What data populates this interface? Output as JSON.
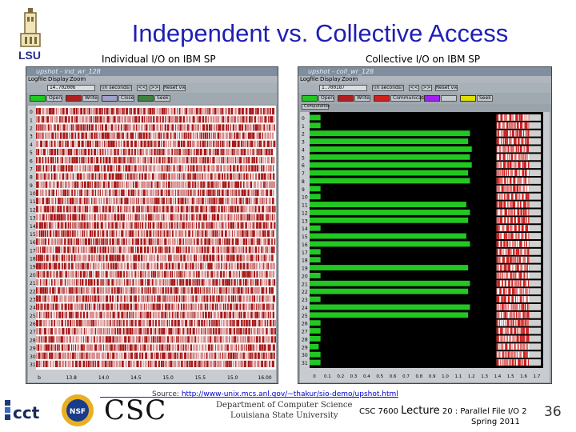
{
  "slide": {
    "title": "Independent vs. Collective Access",
    "left_subtitle": "Individual I/O on IBM SP",
    "right_subtitle": "Collective I/O on IBM SP"
  },
  "colors": {
    "title": "#1e1eb4",
    "open": "#22c822",
    "write": "#b02020",
    "close": "#a0a0c8",
    "seek": "#408040",
    "communication": "#d02020",
    "purple": "#a020f0",
    "yellow": "#e0e000",
    "plot_bg_left": "#f6e8e8",
    "plot_bg_right": "#000000"
  },
  "left_window": {
    "title": "upshot - ind_wr_128",
    "menu": [
      "Logfile",
      "Display",
      "Zoom"
    ],
    "field_value": "14.702006",
    "field_unit": "(in seconds)",
    "btn_prev": "<<",
    "btn_next": ">>",
    "reset_label": "Reset view",
    "legend": [
      {
        "label": "Open",
        "color": "#22c822"
      },
      {
        "label": "Write",
        "color": "#b02020"
      },
      {
        "label": "Close",
        "color": "#a0a0c8"
      },
      {
        "label": "Seek",
        "color": "#408040"
      }
    ],
    "rows": [
      "0",
      "1",
      "2",
      "3",
      "4",
      "5",
      "6",
      "7",
      "8",
      "9",
      "10",
      "11",
      "12",
      "13",
      "14",
      "15",
      "16",
      "17",
      "18",
      "19",
      "20",
      "21",
      "22",
      "23",
      "24",
      "25",
      "26",
      "27",
      "28",
      "29",
      "30",
      "31"
    ],
    "x_ticks": [
      "b",
      "13.8",
      "14.0",
      "14.5",
      "15.0",
      "15.5",
      "15.0",
      "16.00"
    ]
  },
  "right_window": {
    "title": "upshot - coll_wr_128",
    "menu": [
      "Logfile",
      "Display",
      "Zoom"
    ],
    "field_value": "1.700187",
    "field_unit": "(in seconds)",
    "btn_prev": "<<",
    "btn_next": ">>",
    "reset_label": "Reset view",
    "legend": [
      {
        "label": "Open",
        "color": "#22c822"
      },
      {
        "label": "Write",
        "color": "#b02020"
      },
      {
        "label": "Communication",
        "color": "#d02020"
      },
      {
        "label": "",
        "color": "#a020f0"
      },
      {
        "label": "Seek",
        "color": "#e0e000"
      },
      {
        "label": "Computation",
        "color": "#c0c0c0"
      }
    ],
    "rows": [
      "0",
      "1",
      "2",
      "3",
      "4",
      "5",
      "6",
      "7",
      "8",
      "9",
      "10",
      "11",
      "12",
      "13",
      "14",
      "15",
      "16",
      "17",
      "18",
      "19",
      "20",
      "21",
      "22",
      "23",
      "24",
      "25",
      "26",
      "27",
      "28",
      "29",
      "30",
      "31"
    ],
    "x_ticks": [
      "0",
      "0.1",
      "0.2",
      "0.3",
      "0.4",
      "0.5",
      "0.6",
      "0.7",
      "0.8",
      "0.9",
      "1.0",
      "1.1",
      "1.2",
      "1.3",
      "1.4",
      "1.5",
      "1.6",
      "1.7"
    ]
  },
  "footer": {
    "source_prefix": "Source: ",
    "source_url": "http://www-unix.mcs.anl.gov/~thakur/sio-demo/upshot.html",
    "course": "CSC 7600 ",
    "lecture": "Lecture",
    "lecture_rest": " 20 : Parallel File I/O 2",
    "term": "Spring 2011",
    "page": "36",
    "csc_logo": "CSC",
    "dept_line1": "Department of Computer Science",
    "dept_line2": "Louisiana State University",
    "lsu_logo": "LSU",
    "cct_logo": "cct",
    "nsf_logo": "NSF"
  }
}
